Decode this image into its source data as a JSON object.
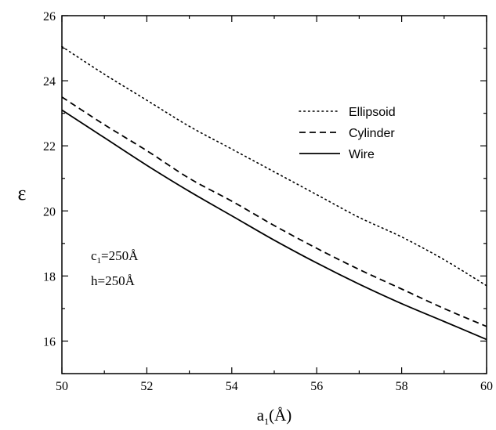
{
  "chart_data": {
    "type": "line",
    "title": "",
    "xlabel": "a",
    "xlabel_subscript": "1",
    "xlabel_unit": "(Å)",
    "ylabel": "ε",
    "xlim": [
      50,
      60
    ],
    "ylim": [
      15,
      26
    ],
    "xticks": [
      "50",
      "52",
      "54",
      "56",
      "58",
      "60"
    ],
    "yticks": [
      "16",
      "18",
      "20",
      "22",
      "24",
      "26"
    ],
    "grid": false,
    "legend_position": "top-right",
    "series": [
      {
        "name": "Ellipsoid",
        "style": "dotted",
        "x": [
          50,
          51,
          52,
          53,
          54,
          55,
          56,
          57,
          58,
          59,
          60
        ],
        "y": [
          25.05,
          24.2,
          23.4,
          22.6,
          21.9,
          21.2,
          20.5,
          19.8,
          19.2,
          18.5,
          17.7
        ]
      },
      {
        "name": "Cylinder",
        "style": "dashed",
        "x": [
          50,
          51,
          52,
          53,
          54,
          55,
          56,
          57,
          58,
          59,
          60
        ],
        "y": [
          23.5,
          22.65,
          21.85,
          21.0,
          20.3,
          19.55,
          18.85,
          18.2,
          17.6,
          17.0,
          16.45
        ]
      },
      {
        "name": "Wire",
        "style": "solid",
        "x": [
          50,
          51,
          52,
          53,
          54,
          55,
          56,
          57,
          58,
          59,
          60
        ],
        "y": [
          23.1,
          22.25,
          21.4,
          20.6,
          19.85,
          19.1,
          18.4,
          17.75,
          17.15,
          16.6,
          16.05
        ]
      }
    ],
    "annotations": [
      {
        "prefix": "c",
        "sub": "1",
        "value": "=250Å"
      },
      {
        "prefix": "h",
        "sub": "",
        "value": "=250Å"
      }
    ]
  }
}
